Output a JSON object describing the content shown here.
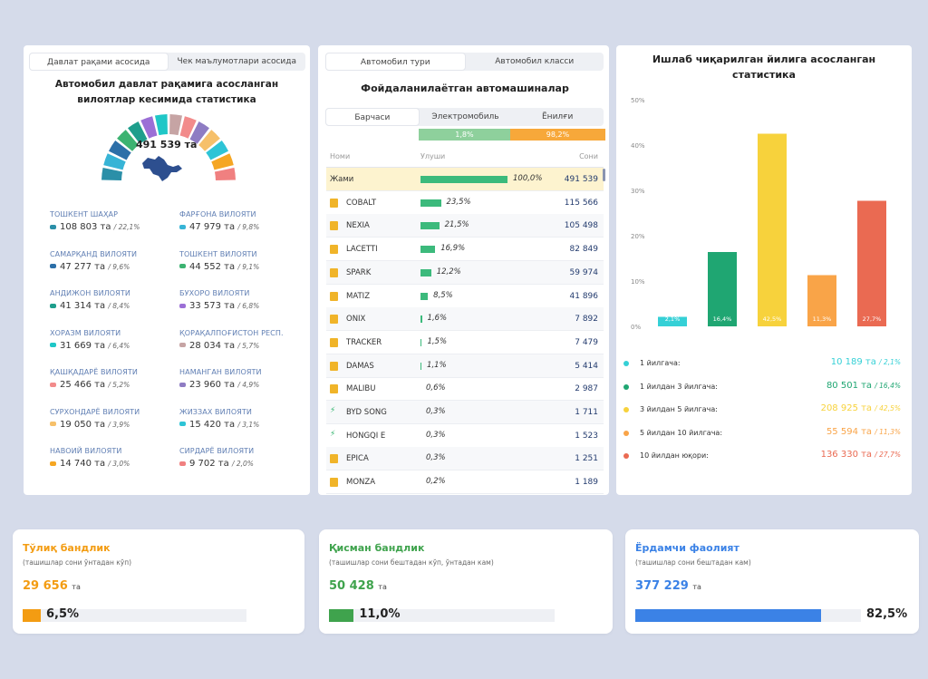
{
  "left": {
    "tabs": [
      "Давлат рақами асосида",
      "Чек маълумотлари асосида"
    ],
    "title": "Автомобил давлат рақамига асосланган вилоятлар кесимида статистика",
    "total": "491 539 та",
    "regions": [
      {
        "name": "ТОШКЕНТ ШАҲАР",
        "value": "108 803 та",
        "pct": "/ 22,1%",
        "color": "#2b8fa8"
      },
      {
        "name": "ФАРҒОНА ВИЛОЯТИ",
        "value": "47 979 та",
        "pct": "/ 9,8%",
        "color": "#37b4d6"
      },
      {
        "name": "САМАРҚАНД ВИЛОЯТИ",
        "value": "47 277 та",
        "pct": "/ 9,6%",
        "color": "#2c6fa8"
      },
      {
        "name": "ТОШКЕНТ ВИЛОЯТИ",
        "value": "44 552 та",
        "pct": "/ 9,1%",
        "color": "#3cb371"
      },
      {
        "name": "АНДИЖОН ВИЛОЯТИ",
        "value": "41 314 та",
        "pct": "/ 8,4%",
        "color": "#1e9e8c"
      },
      {
        "name": "БУХОРО ВИЛОЯТИ",
        "value": "33 573 та",
        "pct": "/ 6,8%",
        "color": "#9b6fd6"
      },
      {
        "name": "ХОРАЗМ ВИЛОЯТИ",
        "value": "31 669 та",
        "pct": "/ 6,4%",
        "color": "#1fc7c7"
      },
      {
        "name": "ҚОРАҚАЛПОҒИСТОН РЕСП.",
        "value": "28 034 та",
        "pct": "/ 5,7%",
        "color": "#c6a4a4"
      },
      {
        "name": "ҚАШҚАДАРЁ ВИЛОЯТИ",
        "value": "25 466 та",
        "pct": "/ 5,2%",
        "color": "#f28b8b"
      },
      {
        "name": "НАМАНГАН ВИЛОЯТИ",
        "value": "23 960 та",
        "pct": "/ 4,9%",
        "color": "#8e7cc3"
      },
      {
        "name": "СУРХОНДАРЁ ВИЛОЯТИ",
        "value": "19 050 та",
        "pct": "/ 3,9%",
        "color": "#f6c06a"
      },
      {
        "name": "ЖИЗЗАХ ВИЛОЯТИ",
        "value": "15 420 та",
        "pct": "/ 3,1%",
        "color": "#2ec4d6"
      },
      {
        "name": "НАВОИЙ ВИЛОЯТИ",
        "value": "14 740 та",
        "pct": "/ 3,0%",
        "color": "#f5a623"
      },
      {
        "name": "СИРДАРЁ ВИЛОЯТИ",
        "value": "9 702 та",
        "pct": "/ 2,0%",
        "color": "#f08080"
      }
    ]
  },
  "middle": {
    "tabs": [
      "Автомобил тури",
      "Автомобил класси"
    ],
    "title": "Фойдаланилаётган автомашиналар",
    "subtabs": [
      "Барчаси",
      "Электромобиль",
      "Ёнилғи"
    ],
    "share": [
      {
        "label": "1,8%",
        "value": 1.8,
        "color": "#8ed09c"
      },
      {
        "label": "98,2%",
        "value": 98.2,
        "color": "#f7a83a"
      }
    ],
    "columns": [
      "Номи",
      "Улуши",
      "Сони"
    ],
    "rows": [
      {
        "name": "Жами",
        "share": 100.0,
        "pct": "100,0%",
        "count": "491 539",
        "fuel": "total"
      },
      {
        "name": "COBALT",
        "share": 23.5,
        "pct": "23,5%",
        "count": "115 566",
        "fuel": "fuel"
      },
      {
        "name": "NEXIA",
        "share": 21.5,
        "pct": "21,5%",
        "count": "105 498",
        "fuel": "fuel"
      },
      {
        "name": "LACETTI",
        "share": 16.9,
        "pct": "16,9%",
        "count": "82 849",
        "fuel": "fuel"
      },
      {
        "name": "SPARK",
        "share": 12.2,
        "pct": "12,2%",
        "count": "59 974",
        "fuel": "fuel"
      },
      {
        "name": "MATIZ",
        "share": 8.5,
        "pct": "8,5%",
        "count": "41 896",
        "fuel": "fuel"
      },
      {
        "name": "ONIX",
        "share": 1.6,
        "pct": "1,6%",
        "count": "7 892",
        "fuel": "fuel"
      },
      {
        "name": "TRACKER",
        "share": 1.5,
        "pct": "1,5%",
        "count": "7 479",
        "fuel": "fuel"
      },
      {
        "name": "DAMAS",
        "share": 1.1,
        "pct": "1,1%",
        "count": "5 414",
        "fuel": "fuel"
      },
      {
        "name": "MALIBU",
        "share": 0.6,
        "pct": "0,6%",
        "count": "2 987",
        "fuel": "fuel"
      },
      {
        "name": "BYD SONG",
        "share": 0.3,
        "pct": "0,3%",
        "count": "1 711",
        "fuel": "electric"
      },
      {
        "name": "HONGQI E",
        "share": 0.3,
        "pct": "0,3%",
        "count": "1 523",
        "fuel": "electric"
      },
      {
        "name": "EPICA",
        "share": 0.3,
        "pct": "0,3%",
        "count": "1 251",
        "fuel": "fuel"
      },
      {
        "name": "MONZA",
        "share": 0.2,
        "pct": "0,2%",
        "count": "1 189",
        "fuel": "fuel"
      }
    ]
  },
  "right": {
    "title": "Ишлаб чиқарилган йилига асосланган статистика",
    "legend": [
      {
        "label": "1 йилгача:",
        "value": "10 189 та",
        "pct": "/ 2,1%",
        "color": "#35d0d6"
      },
      {
        "label": "1 йилдан 3 йилгача:",
        "value": "80 501 та",
        "pct": "/ 16,4%",
        "color": "#1fa672"
      },
      {
        "label": "3 йилдан 5 йилгача:",
        "value": "208 925 та",
        "pct": "/ 42,5%",
        "color": "#f7d23c"
      },
      {
        "label": "5 йилдан 10 йилгача:",
        "value": "55 594 та",
        "pct": "/ 11,3%",
        "color": "#f9a448"
      },
      {
        "label": "10 йилдан юқори:",
        "value": "136 330 та",
        "pct": "/ 27,7%",
        "color": "#ea6a52"
      }
    ]
  },
  "chart_data": {
    "type": "bar",
    "categories": [
      "1 йилгача",
      "1 йилдан 3 йилгача",
      "3 йилдан 5 йилгача",
      "5 йилдан 10 йилгача",
      "10 йилдан юқори"
    ],
    "values": [
      2.1,
      16.4,
      42.5,
      11.3,
      27.7
    ],
    "labels": [
      "2,1%",
      "16,4%",
      "42,5%",
      "11,3%",
      "27,7%"
    ],
    "colors": [
      "#35d0d6",
      "#1fa672",
      "#f7d23c",
      "#f9a448",
      "#ea6a52"
    ],
    "yticks": [
      "0%",
      "10%",
      "20%",
      "30%",
      "40%",
      "50%"
    ],
    "ylim": [
      0,
      50
    ],
    "grid": false
  },
  "cards": [
    {
      "title": "Тўлиқ бандлик",
      "subtitle": "(ташишлар сони ўнтадан кўп)",
      "value": "29 656",
      "unit": "та",
      "pct": "6,5%",
      "fill": 6.5,
      "color": "#f39c12"
    },
    {
      "title": "Қисман бандлик",
      "subtitle": "(ташишлар сони бештадан кўп, ўнтадан кам)",
      "value": "50 428",
      "unit": "та",
      "pct": "11,0%",
      "fill": 11.0,
      "color": "#3fa34d"
    },
    {
      "title": "Ёрдамчи фаолият",
      "subtitle": "(ташишлар сони бештадан кам)",
      "value": "377 229",
      "unit": "та",
      "pct": "82,5%",
      "fill": 82.5,
      "color": "#3b82e6"
    }
  ]
}
